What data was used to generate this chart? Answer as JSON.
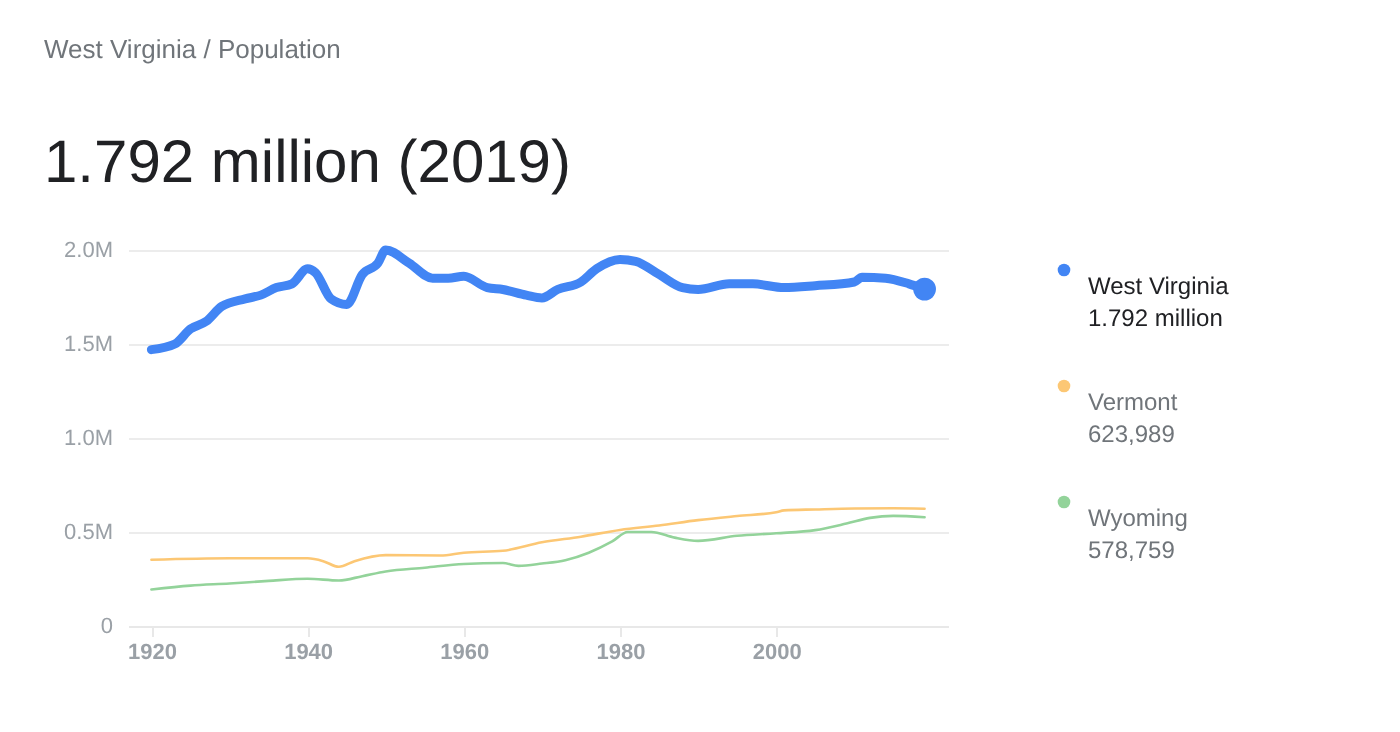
{
  "chart_data": {
    "type": "line",
    "title": "1.792 million (2019)",
    "annotations": [
      "West Virginia / Population",
      "1.792 million",
      "623,989",
      "578,759"
    ],
    "xlim": [
      1917,
      2022
    ],
    "xticks": [
      1920,
      1940,
      1960,
      1980,
      2000
    ],
    "ylim": [
      0,
      2000000
    ],
    "yticks": [
      {
        "value": 0,
        "label": "0"
      },
      {
        "value": 500000,
        "label": "0.5M"
      },
      {
        "value": 1000000,
        "label": "1.0M"
      },
      {
        "value": 1500000,
        "label": "1.5M"
      },
      {
        "value": 2000000,
        "label": "2.0M"
      }
    ],
    "grid": "y",
    "legend": "right",
    "series": [
      {
        "name": "West Virginia",
        "color": "#4285f4",
        "x": [
          1920,
          1923,
          1925,
          1927,
          1929,
          1932,
          1934,
          1936,
          1938,
          1940,
          1941,
          1943,
          1945,
          1947,
          1949,
          1950,
          1953,
          1956,
          1958,
          1960,
          1963,
          1965,
          1968,
          1970,
          1972,
          1975,
          1977,
          1980,
          1982,
          1985,
          1988,
          1990,
          1994,
          1997,
          2001,
          2005,
          2010,
          2011,
          2014,
          2017,
          2019
        ],
        "values": [
          1470000,
          1500000,
          1580000,
          1620000,
          1700000,
          1740000,
          1760000,
          1800000,
          1820000,
          1900000,
          1880000,
          1740000,
          1710000,
          1870000,
          1930000,
          2000000,
          1930000,
          1850000,
          1850000,
          1860000,
          1800000,
          1790000,
          1760000,
          1745000,
          1790000,
          1830000,
          1900000,
          1950000,
          1940000,
          1870000,
          1800000,
          1790000,
          1820000,
          1820000,
          1800000,
          1810000,
          1830000,
          1855000,
          1850000,
          1820000,
          1792000
        ]
      },
      {
        "name": "Vermont",
        "color": "#fcc774",
        "x": [
          1920,
          1930,
          1940,
          1942,
          1944,
          1946,
          1950,
          1957,
          1960,
          1965,
          1970,
          1975,
          1980,
          1985,
          1990,
          1995,
          2000,
          2001,
          2005,
          2010,
          2015,
          2019
        ],
        "values": [
          352000,
          360000,
          360000,
          345000,
          315000,
          345000,
          377000,
          375000,
          390000,
          400000,
          445000,
          475000,
          511000,
          535000,
          563000,
          585000,
          605000,
          615000,
          620000,
          625000,
          626000,
          623989
        ]
      },
      {
        "name": "Wyoming",
        "color": "#93d39a",
        "x": [
          1920,
          1925,
          1930,
          1935,
          1940,
          1944,
          1947,
          1950,
          1955,
          1960,
          1965,
          1967,
          1970,
          1973,
          1976,
          1979,
          1981,
          1984,
          1987,
          1990,
          1995,
          2000,
          2005,
          2009,
          2012,
          2015,
          2019
        ],
        "values": [
          194000,
          215000,
          226000,
          240000,
          251000,
          242000,
          265000,
          290000,
          310000,
          330000,
          335000,
          320000,
          332000,
          350000,
          390000,
          450000,
          500000,
          500000,
          470000,
          453000,
          480000,
          493000,
          510000,
          545000,
          575000,
          586000,
          578759
        ]
      },
      {
        "type": "scatter",
        "color": "#4285f4",
        "x": [
          2019
        ],
        "values": [
          1792000
        ]
      }
    ]
  }
}
